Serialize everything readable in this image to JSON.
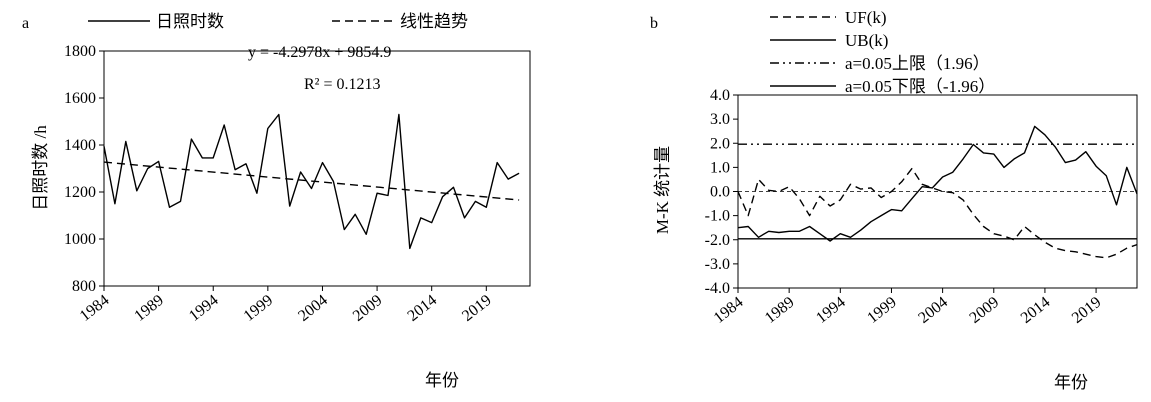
{
  "chart_data": [
    {
      "panel_label": "a",
      "type": "line",
      "xlabel": "年份",
      "ylabel": "日照时数 /h",
      "x": [
        1984,
        1985,
        1986,
        1987,
        1988,
        1989,
        1990,
        1991,
        1992,
        1993,
        1994,
        1995,
        1996,
        1997,
        1998,
        1999,
        2000,
        2001,
        2002,
        2003,
        2004,
        2005,
        2006,
        2007,
        2008,
        2009,
        2010,
        2011,
        2012,
        2013,
        2014,
        2015,
        2016,
        2017,
        2018,
        2019,
        2020,
        2021,
        2022,
        2023
      ],
      "x_ticks": [
        "1984",
        "1989",
        "1994",
        "1999",
        "2004",
        "2009",
        "2014",
        "2019"
      ],
      "y_ticks": [
        "800",
        "1000",
        "1200",
        "1400",
        "1600",
        "1800"
      ],
      "ylim": [
        800,
        1800
      ],
      "series": [
        {
          "name": "日照时数",
          "style": "solid",
          "values": [
            1395,
            1150,
            1415,
            1205,
            1300,
            1330,
            1135,
            1160,
            1425,
            1345,
            1345,
            1485,
            1295,
            1320,
            1195,
            1470,
            1530,
            1140,
            1285,
            1215,
            1325,
            1245,
            1040,
            1105,
            1020,
            1195,
            1185,
            1530,
            960,
            1090,
            1070,
            1180,
            1220,
            1090,
            1160,
            1135,
            1325,
            1255,
            1280,
            null
          ]
        },
        {
          "name": "线性趋势",
          "style": "dashed",
          "values": [
            1327.4,
            null,
            null,
            null,
            null,
            null,
            null,
            null,
            null,
            null,
            null,
            null,
            null,
            null,
            null,
            null,
            null,
            null,
            null,
            null,
            null,
            null,
            null,
            null,
            null,
            null,
            null,
            null,
            null,
            null,
            null,
            null,
            null,
            null,
            null,
            null,
            null,
            null,
            1165.9,
            null
          ]
        }
      ],
      "annotation_equation": "y = -4.2978x + 9854.9",
      "annotation_r2": "R² = 0.1213",
      "grid": false,
      "legend_position": "top"
    },
    {
      "panel_label": "b",
      "type": "line",
      "xlabel": "年份",
      "ylabel": "M-K 统计量",
      "x": [
        1984,
        1985,
        1986,
        1987,
        1988,
        1989,
        1990,
        1991,
        1992,
        1993,
        1994,
        1995,
        1996,
        1997,
        1998,
        1999,
        2000,
        2001,
        2002,
        2003,
        2004,
        2005,
        2006,
        2007,
        2008,
        2009,
        2010,
        2011,
        2012,
        2013,
        2014,
        2015,
        2016,
        2017,
        2018,
        2019,
        2020,
        2021,
        2022,
        2023
      ],
      "x_ticks": [
        "1984",
        "1989",
        "1994",
        "1999",
        "2004",
        "2009",
        "2014",
        "2019"
      ],
      "y_ticks": [
        "-4.0",
        "-3.0",
        "-2.0",
        "-1.0",
        "0.0",
        "1.0",
        "2.0",
        "3.0",
        "4.0"
      ],
      "ylim": [
        -4,
        4
      ],
      "series": [
        {
          "name": "UF(k)",
          "style": "dashed",
          "values": [
            0,
            -1.0,
            0.5,
            0.05,
            0.0,
            0.2,
            -0.3,
            -1.0,
            -0.2,
            -0.6,
            -0.35,
            0.3,
            0.1,
            0.15,
            -0.25,
            0.0,
            0.4,
            0.95,
            0.3,
            0.15,
            0.0,
            -0.05,
            -0.35,
            -0.95,
            -1.45,
            -1.75,
            -1.85,
            -2.0,
            -1.45,
            -1.8,
            -2.1,
            -2.35,
            -2.45,
            -2.5,
            -2.6,
            -2.7,
            -2.75,
            -2.6,
            -2.35,
            -2.2
          ]
        },
        {
          "name": "UB(k)",
          "style": "solid",
          "values": [
            -1.5,
            -1.45,
            -1.9,
            -1.65,
            -1.7,
            -1.65,
            -1.65,
            -1.45,
            -1.75,
            -2.05,
            -1.75,
            -1.9,
            -1.6,
            -1.25,
            -1.0,
            -0.75,
            -0.8,
            -0.3,
            0.2,
            0.15,
            0.6,
            0.8,
            1.35,
            1.95,
            1.6,
            1.55,
            1.0,
            1.35,
            1.6,
            2.7,
            2.35,
            1.85,
            1.2,
            1.3,
            1.65,
            1.05,
            0.65,
            -0.55,
            1.0,
            -0.1
          ]
        },
        {
          "name": "a=0.05上限（1.96）",
          "style": "dashdot",
          "values": [
            1.96,
            null,
            null,
            null,
            null,
            null,
            null,
            null,
            null,
            null,
            null,
            null,
            null,
            null,
            null,
            null,
            null,
            null,
            null,
            null,
            null,
            null,
            null,
            null,
            null,
            null,
            null,
            null,
            null,
            null,
            null,
            null,
            null,
            null,
            null,
            null,
            null,
            null,
            null,
            1.96
          ]
        },
        {
          "name": "a=0.05下限（-1.96）",
          "style": "solid",
          "values": [
            -1.96,
            null,
            null,
            null,
            null,
            null,
            null,
            null,
            null,
            null,
            null,
            null,
            null,
            null,
            null,
            null,
            null,
            null,
            null,
            null,
            null,
            null,
            null,
            null,
            null,
            null,
            null,
            null,
            null,
            null,
            null,
            null,
            null,
            null,
            null,
            null,
            null,
            null,
            null,
            -1.96
          ]
        }
      ],
      "reference_line": 0,
      "grid": false,
      "legend_position": "top-left"
    }
  ]
}
